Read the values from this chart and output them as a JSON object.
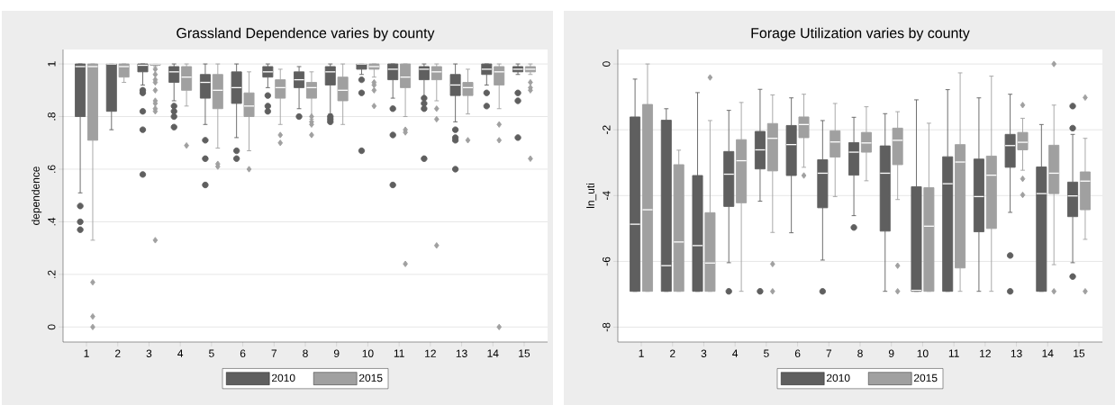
{
  "chart_data": [
    {
      "type": "box",
      "title": "Grassland Dependence varies by county",
      "ylabel": "dependence",
      "categories": [
        "1",
        "2",
        "3",
        "4",
        "5",
        "6",
        "7",
        "8",
        "9",
        "10",
        "11",
        "12",
        "13",
        "14",
        "15"
      ],
      "ylim": [
        -0.057,
        1.055
      ],
      "yticks": [
        0,
        {
          "value": 0.2,
          "label": ".2"
        },
        {
          "value": 0.4,
          "label": ".4"
        },
        {
          "value": 0.6,
          "label": ".6"
        },
        {
          "value": 0.8,
          "label": ".8"
        },
        1
      ],
      "grid": "y",
      "legend": "bottom",
      "series": [
        {
          "name": "2010",
          "color": "#5f5f5f",
          "marker": "circle",
          "boxes": [
            {
              "low": 0.51,
              "q1": 0.8,
              "median": 0.99,
              "q3": 1.0,
              "high": 1.0,
              "outliers": [
                0.46,
                0.4,
                0.37
              ]
            },
            {
              "low": 0.75,
              "q1": 0.82,
              "median": 1.0,
              "q3": 1.0,
              "high": 1.0
            },
            {
              "low": 0.92,
              "q1": 0.97,
              "median": 0.995,
              "q3": 1.0,
              "high": 1.0,
              "outliers": [
                0.9,
                0.89,
                0.82,
                0.75,
                0.58
              ]
            },
            {
              "low": 0.86,
              "q1": 0.93,
              "median": 0.97,
              "q3": 0.99,
              "high": 1.0,
              "outliers": [
                0.84,
                0.82,
                0.8,
                0.76
              ]
            },
            {
              "low": 0.77,
              "q1": 0.87,
              "median": 0.93,
              "q3": 0.96,
              "high": 1.0,
              "outliers": [
                0.71,
                0.64,
                0.54
              ]
            },
            {
              "low": 0.72,
              "q1": 0.85,
              "median": 0.91,
              "q3": 0.97,
              "high": 1.0,
              "outliers": [
                0.67,
                0.64
              ]
            },
            {
              "low": 0.91,
              "q1": 0.95,
              "median": 0.97,
              "q3": 0.99,
              "high": 1.0,
              "outliers": [
                0.88,
                0.84,
                0.82
              ]
            },
            {
              "low": 0.83,
              "q1": 0.91,
              "median": 0.94,
              "q3": 0.97,
              "high": 0.99,
              "outliers": [
                0.8
              ]
            },
            {
              "low": 0.81,
              "q1": 0.92,
              "median": 0.97,
              "q3": 0.99,
              "high": 1.0,
              "outliers": [
                0.8,
                0.79,
                0.78
              ]
            },
            {
              "low": 0.96,
              "q1": 0.98,
              "median": 1.0,
              "q3": 1.0,
              "high": 1.0,
              "outliers": [
                0.94,
                0.89,
                0.67
              ]
            },
            {
              "low": 0.87,
              "q1": 0.94,
              "median": 0.98,
              "q3": 1.0,
              "high": 1.0,
              "outliers": [
                0.83,
                0.73,
                0.54
              ]
            },
            {
              "low": 0.87,
              "q1": 0.94,
              "median": 0.98,
              "q3": 0.99,
              "high": 1.0,
              "outliers": [
                0.87,
                0.85,
                0.83,
                0.64
              ]
            },
            {
              "low": 0.78,
              "q1": 0.88,
              "median": 0.92,
              "q3": 0.96,
              "high": 1.0,
              "outliers": [
                0.75,
                0.72,
                0.71,
                0.6
              ]
            },
            {
              "low": 0.92,
              "q1": 0.96,
              "median": 0.98,
              "q3": 1.0,
              "high": 1.0,
              "outliers": [
                0.89,
                0.84
              ]
            },
            {
              "low": 0.96,
              "q1": 0.97,
              "median": 0.98,
              "q3": 0.99,
              "high": 1.0,
              "outliers": [
                0.89,
                0.86,
                0.72
              ]
            }
          ]
        },
        {
          "name": "2015",
          "color": "#a0a0a0",
          "marker": "diamond",
          "boxes": [
            {
              "low": 0.33,
              "q1": 0.71,
              "median": 0.99,
              "q3": 1.0,
              "high": 1.0,
              "outliers": [
                0.17,
                0.04,
                0.0
              ]
            },
            {
              "low": 0.93,
              "q1": 0.95,
              "median": 0.99,
              "q3": 1.0,
              "high": 1.0
            },
            {
              "low": 0.99,
              "q1": 0.995,
              "median": 1.0,
              "q3": 1.0,
              "high": 1.0,
              "outliers": [
                0.98,
                0.96,
                0.94,
                0.93,
                0.9,
                0.86,
                0.85,
                0.83,
                0.82,
                0.33
              ]
            },
            {
              "low": 0.84,
              "q1": 0.9,
              "median": 0.95,
              "q3": 0.99,
              "high": 1.0,
              "outliers": [
                0.69
              ]
            },
            {
              "low": 0.68,
              "q1": 0.83,
              "median": 0.9,
              "q3": 0.96,
              "high": 1.0,
              "outliers": [
                0.62,
                0.61
              ]
            },
            {
              "low": 0.67,
              "q1": 0.8,
              "median": 0.84,
              "q3": 0.89,
              "high": 0.97,
              "outliers": [
                0.6
              ]
            },
            {
              "low": 0.77,
              "q1": 0.87,
              "median": 0.91,
              "q3": 0.94,
              "high": 0.98,
              "outliers": [
                0.73,
                0.7
              ]
            },
            {
              "low": 0.79,
              "q1": 0.87,
              "median": 0.91,
              "q3": 0.93,
              "high": 0.97,
              "outliers": [
                0.8,
                0.78,
                0.77,
                0.73
              ]
            },
            {
              "low": 0.77,
              "q1": 0.86,
              "median": 0.9,
              "q3": 0.95,
              "high": 1.0
            },
            {
              "low": 0.95,
              "q1": 0.98,
              "median": 0.99,
              "q3": 1.0,
              "high": 1.0,
              "outliers": [
                0.93,
                0.92,
                0.9,
                0.84
              ]
            },
            {
              "low": 0.8,
              "q1": 0.91,
              "median": 0.95,
              "q3": 1.0,
              "high": 1.0,
              "outliers": [
                0.75,
                0.74,
                0.24
              ]
            },
            {
              "low": 0.86,
              "q1": 0.94,
              "median": 0.97,
              "q3": 0.99,
              "high": 1.0,
              "outliers": [
                0.83,
                0.79,
                0.31
              ]
            },
            {
              "low": 0.81,
              "q1": 0.88,
              "median": 0.91,
              "q3": 0.93,
              "high": 0.98,
              "outliers": [
                0.71
              ]
            },
            {
              "low": 0.83,
              "q1": 0.92,
              "median": 0.97,
              "q3": 0.99,
              "high": 1.0,
              "outliers": [
                0.77,
                0.71,
                0.0
              ]
            },
            {
              "low": 0.96,
              "q1": 0.97,
              "median": 0.98,
              "q3": 0.99,
              "high": 1.0,
              "outliers": [
                0.93,
                0.91,
                0.9,
                0.64
              ]
            }
          ]
        }
      ]
    },
    {
      "type": "box",
      "title": "Forage Utilization varies by county",
      "ylabel": "ln_uti",
      "categories": [
        "1",
        "2",
        "3",
        "4",
        "5",
        "6",
        "7",
        "8",
        "9",
        "10",
        "11",
        "12",
        "13",
        "14",
        "15"
      ],
      "ylim": [
        -8.45,
        0.44
      ],
      "yticks": [
        -8,
        -6,
        -4,
        -2,
        0
      ],
      "grid": "y",
      "legend": "bottom",
      "series": [
        {
          "name": "2010",
          "color": "#5f5f5f",
          "marker": "circle",
          "boxes": [
            {
              "low": -6.91,
              "q1": -6.91,
              "median": -4.87,
              "q3": -1.61,
              "high": -0.46
            },
            {
              "low": -6.91,
              "q1": -6.91,
              "median": -6.13,
              "q3": -1.71,
              "high": -1.36
            },
            {
              "low": -6.91,
              "q1": -6.91,
              "median": -5.52,
              "q3": -3.39,
              "high": -0.87
            },
            {
              "low": -6.04,
              "q1": -4.33,
              "median": -3.35,
              "q3": -2.66,
              "high": -1.41,
              "outliers": [
                -6.91
              ]
            },
            {
              "low": -4.17,
              "q1": -3.19,
              "median": -2.61,
              "q3": -2.05,
              "high": -0.77,
              "outliers": [
                -6.91
              ]
            },
            {
              "low": -5.13,
              "q1": -3.39,
              "median": -2.45,
              "q3": -1.87,
              "high": -1.03
            },
            {
              "low": -5.96,
              "q1": -4.37,
              "median": -3.32,
              "q3": -2.91,
              "high": -1.72,
              "outliers": [
                -6.91
              ]
            },
            {
              "low": -4.61,
              "q1": -3.38,
              "median": -2.68,
              "q3": -2.39,
              "high": -1.62,
              "outliers": [
                -4.97
              ]
            },
            {
              "low": -6.91,
              "q1": -5.08,
              "median": -3.32,
              "q3": -2.49,
              "high": -1.51
            },
            {
              "low": -6.91,
              "q1": -6.91,
              "median": -6.88,
              "q3": -3.73,
              "high": -1.09
            },
            {
              "low": -6.91,
              "q1": -6.91,
              "median": -3.64,
              "q3": -2.82,
              "high": -0.78
            },
            {
              "low": -6.91,
              "q1": -5.1,
              "median": -4.03,
              "q3": -2.89,
              "high": -1.03
            },
            {
              "low": -4.51,
              "q1": -3.14,
              "median": -2.48,
              "q3": -2.14,
              "high": -0.92,
              "outliers": [
                -5.82,
                -6.91
              ]
            },
            {
              "low": -6.91,
              "q1": -6.91,
              "median": -3.94,
              "q3": -3.13,
              "high": -1.84
            },
            {
              "low": -6.04,
              "q1": -4.64,
              "median": -4.01,
              "q3": -3.59,
              "high": -2.14,
              "outliers": [
                -1.28,
                -1.95,
                -6.46
              ]
            }
          ]
        },
        {
          "name": "2015",
          "color": "#a0a0a0",
          "marker": "diamond",
          "boxes": [
            {
              "low": -6.91,
              "q1": -6.91,
              "median": -4.43,
              "q3": -1.23,
              "high": 0.0
            },
            {
              "low": -6.91,
              "q1": -6.91,
              "median": -5.41,
              "q3": -3.06,
              "high": -2.62
            },
            {
              "low": -6.91,
              "q1": -6.91,
              "median": -6.05,
              "q3": -4.52,
              "high": -1.72,
              "outliers": [
                -0.41
              ]
            },
            {
              "low": -6.91,
              "q1": -4.22,
              "median": -2.94,
              "q3": -2.3,
              "high": -1.17
            },
            {
              "low": -5.12,
              "q1": -3.25,
              "median": -2.26,
              "q3": -1.81,
              "high": -0.94,
              "outliers": [
                -6.08,
                -6.91
              ]
            },
            {
              "low": -3.14,
              "q1": -2.24,
              "median": -1.84,
              "q3": -1.61,
              "high": -0.92,
              "outliers": [
                -3.39
              ]
            },
            {
              "low": -4.03,
              "q1": -2.83,
              "median": -2.37,
              "q3": -2.03,
              "high": -1.2
            },
            {
              "low": -3.55,
              "q1": -2.68,
              "median": -2.4,
              "q3": -2.08,
              "high": -1.3
            },
            {
              "low": -4.12,
              "q1": -3.06,
              "median": -2.32,
              "q3": -1.95,
              "high": -1.45,
              "outliers": [
                -6.13,
                -6.91
              ]
            },
            {
              "low": -6.91,
              "q1": -6.91,
              "median": -4.93,
              "q3": -3.76,
              "high": -1.8
            },
            {
              "low": -6.91,
              "q1": -6.2,
              "median": -2.98,
              "q3": -2.45,
              "high": -0.27
            },
            {
              "low": -6.91,
              "q1": -5.0,
              "median": -3.38,
              "q3": -2.8,
              "high": -0.37
            },
            {
              "low": -3.23,
              "q1": -2.61,
              "median": -2.38,
              "q3": -2.08,
              "high": -1.65,
              "outliers": [
                -1.25,
                -3.49,
                -3.98
              ]
            },
            {
              "low": -6.1,
              "q1": -3.94,
              "median": -3.32,
              "q3": -2.47,
              "high": -1.25,
              "outliers": [
                0.0,
                -6.91
              ]
            },
            {
              "low": -5.33,
              "q1": -4.43,
              "median": -3.56,
              "q3": -3.28,
              "high": -2.26,
              "outliers": [
                -1.02,
                -6.91
              ]
            }
          ]
        }
      ]
    }
  ]
}
